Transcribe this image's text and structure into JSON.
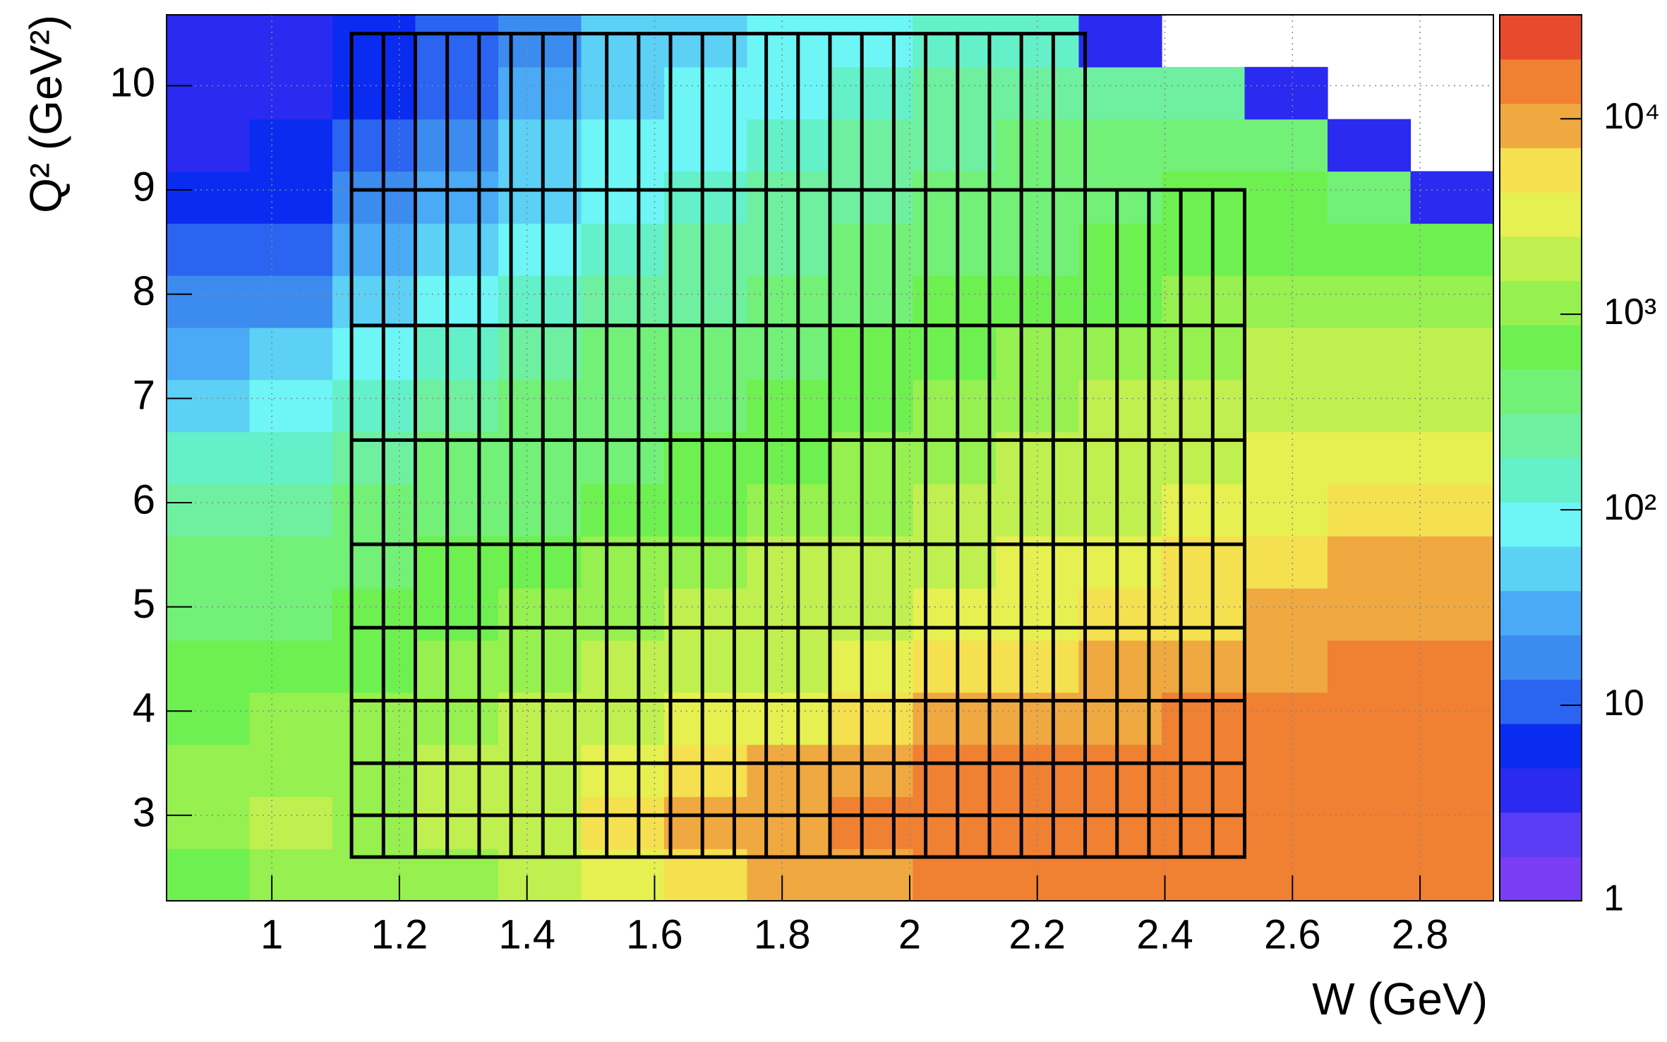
{
  "chart_data": {
    "type": "heatmap",
    "x_label": "W (GeV)",
    "y_label": "Q² (GeV²)",
    "xlim": [
      0.835,
      2.915
    ],
    "ylim": [
      2.18,
      10.68
    ],
    "xticks": [
      1,
      1.2,
      1.4,
      1.6,
      1.8,
      2,
      2.2,
      2.4,
      2.6,
      2.8
    ],
    "yticks": [
      3,
      4,
      5,
      6,
      7,
      8,
      9,
      10
    ],
    "grid": true,
    "x_bins": [
      0.835,
      0.965,
      1.095,
      1.225,
      1.355,
      1.485,
      1.615,
      1.745,
      1.875,
      2.005,
      2.135,
      2.265,
      2.395,
      2.525,
      2.655,
      2.785,
      2.915
    ],
    "y_bins": [
      2.18,
      2.68,
      3.18,
      3.68,
      4.18,
      4.68,
      5.18,
      5.68,
      6.18,
      6.68,
      7.18,
      7.68,
      8.18,
      8.68,
      9.18,
      9.68,
      10.18,
      10.68
    ],
    "z": [
      [
        790,
        1000,
        1000,
        1000,
        1600,
        4000,
        6300,
        7900,
        10000,
        13000,
        16000,
        20000,
        20000,
        20000,
        20000,
        20000
      ],
      [
        1300,
        2000,
        1300,
        1600,
        2500,
        5000,
        7900,
        10000,
        13000,
        16000,
        20000,
        20000,
        20000,
        20000,
        20000,
        20000
      ],
      [
        1000,
        1300,
        1300,
        1600,
        2000,
        3200,
        5000,
        7900,
        10000,
        13000,
        16000,
        20000,
        20000,
        20000,
        20000,
        20000
      ],
      [
        790,
        1000,
        1000,
        1300,
        1600,
        2000,
        3200,
        4000,
        6300,
        7900,
        10000,
        10000,
        13000,
        16000,
        16000,
        20000
      ],
      [
        630,
        790,
        790,
        1000,
        1300,
        1600,
        2000,
        2500,
        3200,
        5000,
        6300,
        7900,
        10000,
        10000,
        13000,
        13000
      ],
      [
        400,
        500,
        630,
        790,
        1000,
        1300,
        1600,
        2000,
        2500,
        3200,
        4000,
        5000,
        6300,
        7900,
        10000,
        10000
      ],
      [
        320,
        400,
        500,
        630,
        790,
        1000,
        1300,
        1600,
        2000,
        2500,
        3200,
        4000,
        5000,
        6300,
        7900,
        7900
      ],
      [
        200,
        250,
        320,
        400,
        500,
        630,
        790,
        1000,
        1300,
        1600,
        2000,
        2500,
        3200,
        4000,
        5000,
        6300
      ],
      [
        130,
        160,
        250,
        320,
        400,
        500,
        630,
        790,
        1000,
        1300,
        1600,
        2000,
        2500,
        3200,
        3200,
        3200
      ],
      [
        50,
        79,
        160,
        200,
        320,
        400,
        500,
        630,
        790,
        1000,
        1300,
        1600,
        2000,
        2000,
        2000,
        2000
      ],
      [
        32,
        40,
        100,
        160,
        200,
        320,
        400,
        500,
        630,
        790,
        1000,
        1000,
        1300,
        1600,
        1600,
        1600
      ],
      [
        16,
        20,
        40,
        79,
        130,
        200,
        250,
        320,
        500,
        630,
        790,
        790,
        1000,
        1000,
        1000,
        1000
      ],
      [
        10,
        13,
        25,
        50,
        100,
        160,
        200,
        250,
        320,
        400,
        500,
        630,
        790,
        790,
        790,
        790
      ],
      [
        6,
        8,
        16,
        32,
        63,
        100,
        160,
        200,
        250,
        320,
        400,
        500,
        630,
        630,
        500,
        4
      ],
      [
        4,
        5,
        10,
        20,
        40,
        79,
        100,
        160,
        200,
        250,
        320,
        400,
        400,
        320,
        3,
        null
      ],
      [
        3,
        4,
        6,
        13,
        25,
        50,
        79,
        100,
        160,
        200,
        250,
        250,
        200,
        3,
        null,
        null
      ],
      [
        3,
        3,
        5,
        10,
        20,
        40,
        63,
        79,
        100,
        130,
        160,
        3,
        null,
        null,
        null,
        null
      ]
    ],
    "zlog": true,
    "zlim": [
      1,
      34000
    ],
    "zticks": [
      1,
      10,
      {
        "value": 100,
        "label": "10²"
      },
      {
        "value": 1000,
        "label": "10³"
      },
      {
        "value": 10000,
        "label": "10⁴"
      }
    ],
    "colormap": [
      "#7a3cf5",
      "#5a3cf5",
      "#2a2af0",
      "#0a2cf0",
      "#2a64f0",
      "#3c8cf0",
      "#4aaaf5",
      "#5cd0f5",
      "#6ef5f5",
      "#64f0c8",
      "#6ef0a0",
      "#72f078",
      "#6ef050",
      "#96f050",
      "#c0f050",
      "#e6f050",
      "#f5e050",
      "#f0a840",
      "#f08032",
      "#e84a2e"
    ],
    "bin_grid": {
      "color": "#000000",
      "w_edges": [
        1.125,
        1.175,
        1.225,
        1.275,
        1.325,
        1.375,
        1.425,
        1.475,
        1.525,
        1.575,
        1.625,
        1.675,
        1.725,
        1.775,
        1.825,
        1.875,
        1.925,
        1.975,
        2.025,
        2.075,
        2.125,
        2.175,
        2.225,
        2.275,
        2.325,
        2.375,
        2.425,
        2.475,
        2.525
      ],
      "q2_edges": [
        2.6,
        3.0,
        3.5,
        4.1,
        4.8,
        5.6,
        6.6,
        7.7,
        9.0,
        10.5
      ],
      "top_row_w_max": 2.275
    }
  }
}
